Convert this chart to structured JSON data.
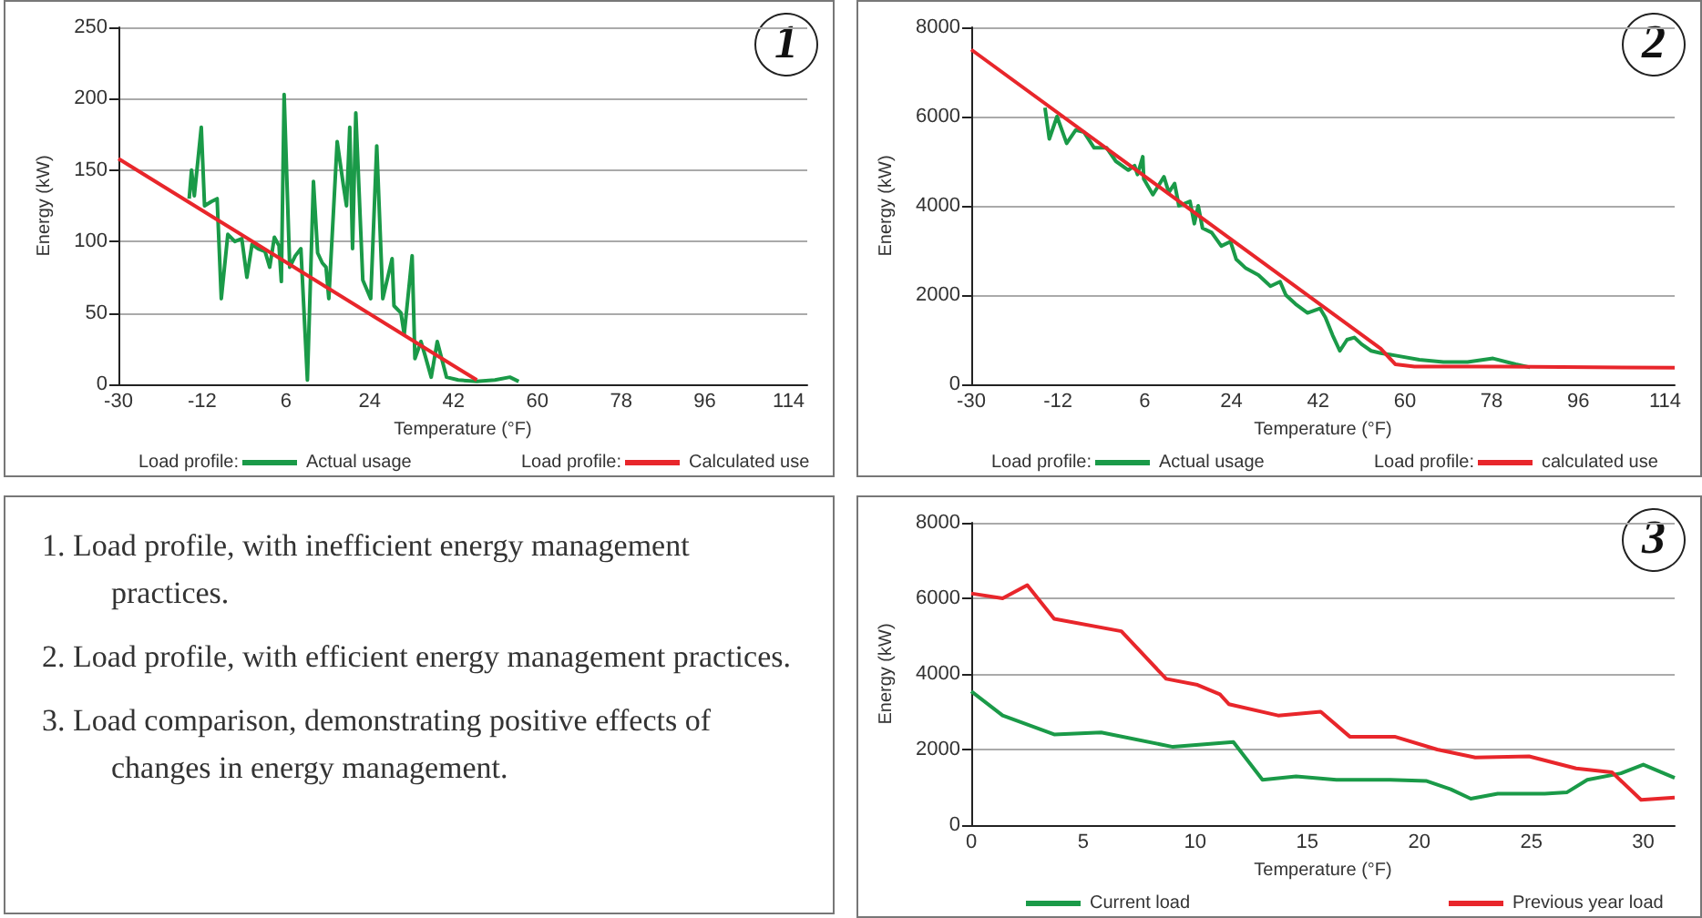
{
  "chart_data": [
    {
      "type": "line",
      "title": "1",
      "xlabel": "Temperature (°F)",
      "ylabel": "Energy (kW)",
      "xlim": [
        -30,
        118
      ],
      "xticks": [
        -30,
        -12,
        6,
        24,
        42,
        60,
        78,
        96,
        114
      ],
      "ylim": [
        0,
        250
      ],
      "yticks": [
        0,
        50,
        100,
        150,
        200,
        250
      ],
      "grid": "y",
      "legend": "bottom",
      "annotations": [
        "Load profile:",
        "Load profile:"
      ],
      "series": [
        {
          "name": "Actual usage",
          "color": "#1a9a48",
          "x": [
            -14.8,
            -14.3,
            -13.7,
            -12.2,
            -11.5,
            -10,
            -8.8,
            -7.9,
            -6.5,
            -5,
            -3.5,
            -2.4,
            -1.3,
            0,
            1.5,
            2.5,
            3.5,
            4.5,
            5,
            5.6,
            6.8,
            8,
            9.2,
            10.6,
            11.9,
            12.8,
            13.8,
            14.6,
            15.2,
            17,
            18.3,
            19,
            19.7,
            20.3,
            21,
            22.5,
            24.2,
            25.5,
            26.8,
            28.8,
            29.2,
            30.7,
            31.4,
            33.1,
            33.7,
            35,
            35.9,
            37.2,
            38.5,
            40.5,
            43,
            47,
            50.9,
            54.1,
            56
          ],
          "values": [
            130,
            150,
            132,
            180,
            125,
            128,
            130,
            60,
            105,
            100,
            102,
            75,
            98,
            95,
            93,
            82,
            103,
            97,
            72,
            203,
            82,
            90,
            95,
            3,
            142,
            92,
            85,
            82,
            60,
            170,
            140,
            125,
            180,
            95,
            190,
            73,
            60,
            167,
            60,
            88,
            55,
            50,
            35,
            90,
            18,
            30,
            20,
            5,
            30,
            5,
            3,
            2,
            3,
            5,
            2
          ]
        },
        {
          "name": "Calculated use",
          "color": "#e8262b",
          "x": [
            -30,
            47
          ],
          "values": [
            158,
            3
          ]
        }
      ]
    },
    {
      "type": "line",
      "title": "2",
      "xlabel": "Temperature (°F)",
      "ylabel": "Energy (kW)",
      "xlim": [
        -30,
        116
      ],
      "xticks": [
        -30,
        -12,
        6,
        24,
        42,
        60,
        78,
        96,
        114
      ],
      "ylim": [
        0,
        8000
      ],
      "yticks": [
        0,
        2000,
        4000,
        6000,
        8000
      ],
      "grid": "y",
      "legend": "bottom",
      "annotations": [
        "Load profile:",
        "Load profile:"
      ],
      "series": [
        {
          "name": "Actual usage",
          "color": "#1a9a48",
          "x": [
            -14.7,
            -13.8,
            -12.2,
            -10.2,
            -8.3,
            -6.6,
            -4.5,
            -1.9,
            0,
            2.6,
            3.9,
            4.5,
            5.6,
            5.8,
            7.7,
            10,
            11,
            12.2,
            13.1,
            15.4,
            16.3,
            17.1,
            18,
            19.9,
            21.9,
            23.8,
            25,
            27,
            29.6,
            32.1,
            34.1,
            35.3,
            37.3,
            39.8,
            42.4,
            43.5,
            45,
            46.5,
            48,
            49.5,
            51,
            53,
            55,
            57.8,
            63,
            68,
            73,
            78.3,
            83,
            86
          ],
          "values": [
            6200,
            5500,
            6000,
            5400,
            5700,
            5650,
            5300,
            5300,
            5000,
            4800,
            4900,
            4700,
            5100,
            4600,
            4250,
            4650,
            4300,
            4500,
            4000,
            4100,
            3600,
            4000,
            3500,
            3400,
            3100,
            3200,
            2800,
            2600,
            2450,
            2200,
            2300,
            2000,
            1800,
            1600,
            1700,
            1500,
            1100,
            750,
            1000,
            1050,
            900,
            750,
            700,
            650,
            550,
            500,
            500,
            580,
            450,
            380
          ]
        },
        {
          "name": "calculated use",
          "color": "#e8262b",
          "x": [
            -30,
            55,
            58,
            62,
            80,
            116
          ],
          "values": [
            7500,
            800,
            450,
            400,
            400,
            370
          ]
        }
      ]
    },
    {
      "type": "other",
      "annotations": [
        "1. Load profile, with inefficient energy management practices.",
        "2. Load profile, with efficient energy management practices.",
        "3. Load comparison, demonstrating positive effects of changes in energy management."
      ]
    },
    {
      "type": "line",
      "title": "3",
      "xlabel": "Temperature (°F)",
      "ylabel": "Energy (kW)",
      "xlim": [
        0,
        31.4
      ],
      "xticks": [
        0,
        5,
        10,
        15,
        20,
        25,
        30
      ],
      "ylim": [
        0,
        8000
      ],
      "yticks": [
        0,
        2000,
        4000,
        6000,
        8000
      ],
      "grid": "y",
      "legend": "bottom",
      "series": [
        {
          "name": "Current load",
          "color": "#1a9a48",
          "x": [
            0,
            1.4,
            3.7,
            5.8,
            9,
            11.7,
            13,
            14.5,
            16.3,
            18.7,
            20.3,
            21.4,
            22.3,
            23.5,
            25.6,
            26.6,
            27.5,
            29,
            30,
            31.4
          ],
          "values": [
            3540,
            2900,
            2400,
            2450,
            2070,
            2200,
            1200,
            1290,
            1200,
            1200,
            1170,
            950,
            700,
            830,
            830,
            870,
            1200,
            1370,
            1600,
            1250
          ]
        },
        {
          "name": "Previous year load",
          "color": "#e8262b",
          "x": [
            0,
            1.4,
            2.5,
            3.7,
            6.7,
            8.7,
            10.1,
            11.1,
            11.5,
            13.7,
            15.6,
            16.9,
            18.9,
            20.8,
            22.5,
            24.9,
            27,
            28.6,
            29.9,
            31.4
          ],
          "values": [
            6130,
            6000,
            6350,
            5460,
            5130,
            3870,
            3710,
            3460,
            3200,
            2900,
            3000,
            2340,
            2340,
            2000,
            1790,
            1820,
            1500,
            1400,
            670,
            730
          ]
        }
      ]
    }
  ]
}
